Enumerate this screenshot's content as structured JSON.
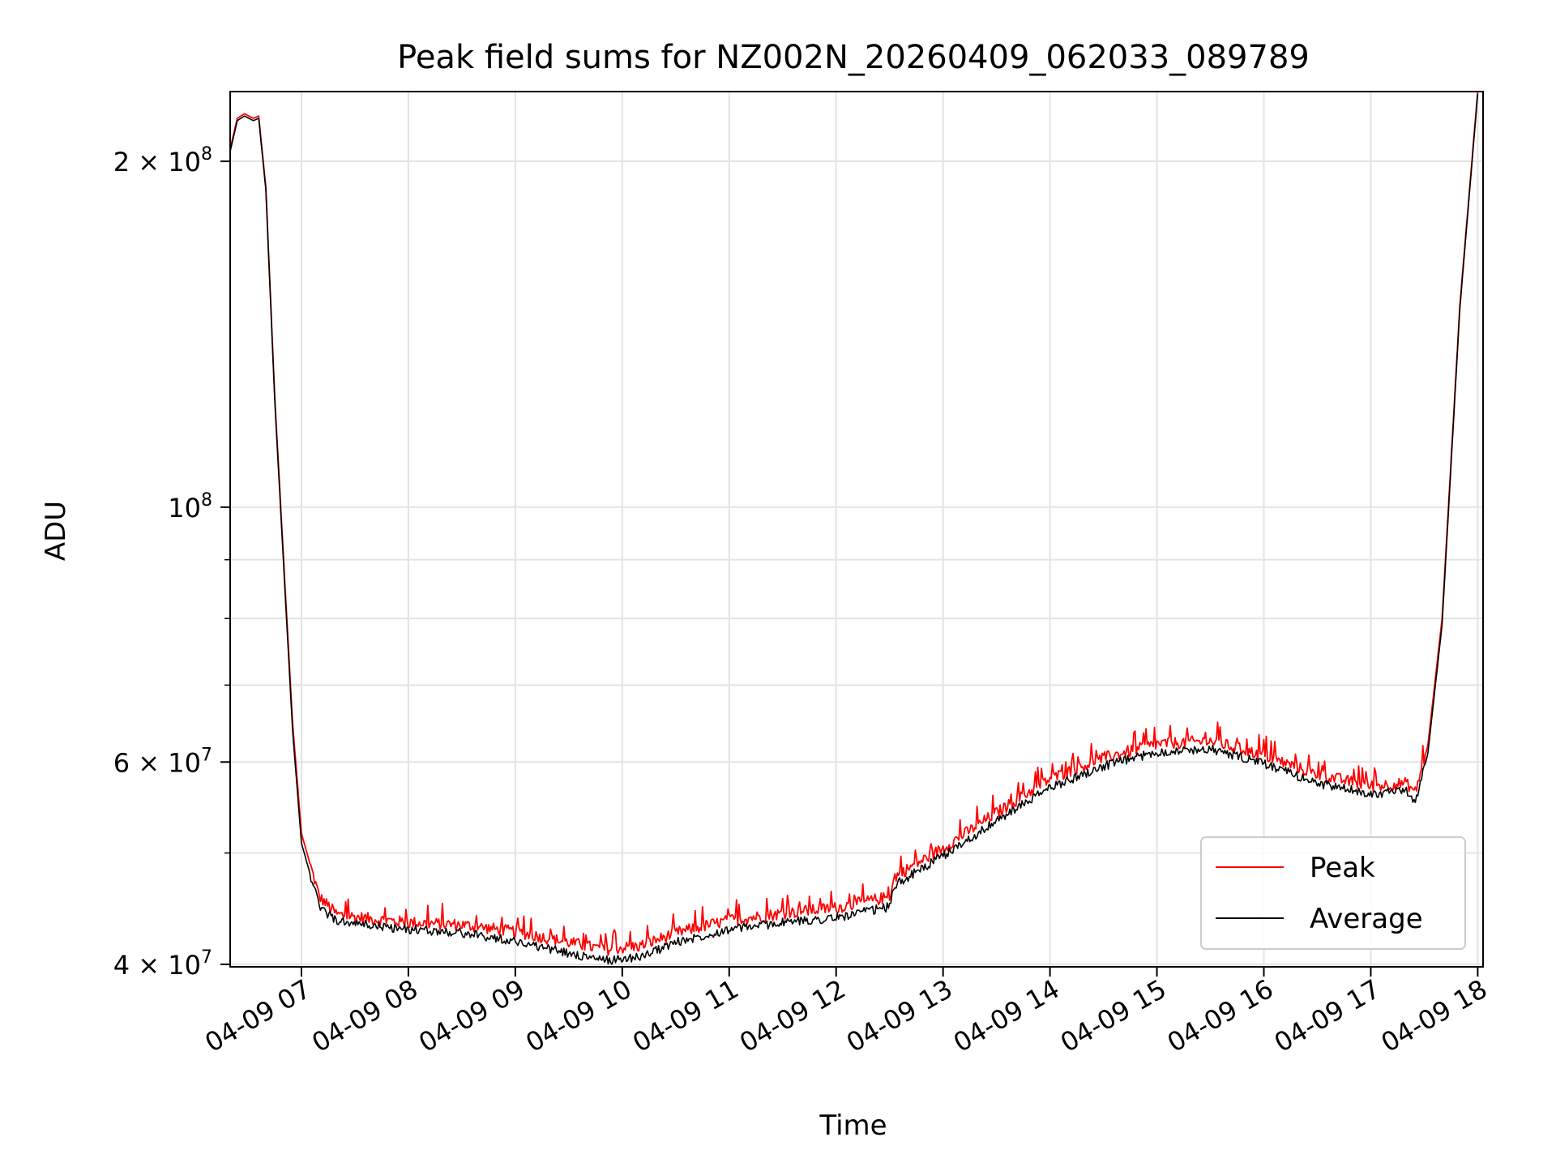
{
  "chart_data": {
    "type": "line",
    "title": "Peak field sums for NZ002N_20260409_062033_089789",
    "xlabel": "Time",
    "ylabel": "ADU",
    "yscale": "log",
    "grid": true,
    "legend_position": "lower-right",
    "xlim": [
      "2026-04-09 06:20",
      "2026-04-09 18:03"
    ],
    "ylim": [
      39800000,
      230000000
    ],
    "x_ticks": [
      "04-09 07",
      "04-09 08",
      "04-09 09",
      "04-09 10",
      "04-09 11",
      "04-09 12",
      "04-09 13",
      "04-09 14",
      "04-09 15",
      "04-09 16",
      "04-09 17",
      "04-09 18"
    ],
    "y_ticks": [
      {
        "value": 40000000,
        "base": "4 × 10",
        "exp": "7"
      },
      {
        "value": 60000000,
        "base": "6 × 10",
        "exp": "7"
      },
      {
        "value": 100000000,
        "base": "10",
        "exp": "8"
      },
      {
        "value": 200000000,
        "base": "2 × 10",
        "exp": "8"
      }
    ],
    "series": [
      {
        "name": "Peak",
        "color": "#ff0000",
        "points": [
          [
            "2026-04-09 06:20",
            205000000
          ],
          [
            "2026-04-09 06:24",
            218000000
          ],
          [
            "2026-04-09 06:28",
            220000000
          ],
          [
            "2026-04-09 06:33",
            218000000
          ],
          [
            "2026-04-09 06:36",
            219000000
          ],
          [
            "2026-04-09 06:40",
            190000000
          ],
          [
            "2026-04-09 06:45",
            125000000
          ],
          [
            "2026-04-09 06:50",
            90000000
          ],
          [
            "2026-04-09 06:55",
            65000000
          ],
          [
            "2026-04-09 07:00",
            52000000
          ],
          [
            "2026-04-09 07:10",
            45800000
          ],
          [
            "2026-04-09 07:20",
            44200000
          ],
          [
            "2026-04-09 07:40",
            43800000
          ],
          [
            "2026-04-09 08:00",
            43500000
          ],
          [
            "2026-04-09 08:30",
            43300000
          ],
          [
            "2026-04-09 09:00",
            42700000
          ],
          [
            "2026-04-09 09:30",
            41800000
          ],
          [
            "2026-04-09 09:50",
            41200000
          ],
          [
            "2026-04-09 10:10",
            41500000
          ],
          [
            "2026-04-09 10:30",
            42600000
          ],
          [
            "2026-04-09 11:00",
            43700000
          ],
          [
            "2026-04-09 11:30",
            44300000
          ],
          [
            "2026-04-09 12:00",
            44800000
          ],
          [
            "2026-04-09 12:30",
            45800000
          ],
          [
            "2026-04-09 12:33",
            47700000
          ],
          [
            "2026-04-09 13:00",
            50500000
          ],
          [
            "2026-04-09 13:30",
            54200000
          ],
          [
            "2026-04-09 14:00",
            58000000
          ],
          [
            "2026-04-09 14:30",
            60500000
          ],
          [
            "2026-04-09 15:00",
            62200000
          ],
          [
            "2026-04-09 15:30",
            62600000
          ],
          [
            "2026-04-09 16:00",
            60800000
          ],
          [
            "2026-04-09 16:30",
            58500000
          ],
          [
            "2026-04-09 17:00",
            57200000
          ],
          [
            "2026-04-09 17:20",
            57500000
          ],
          [
            "2026-04-09 17:25",
            56500000
          ],
          [
            "2026-04-09 17:32",
            62000000
          ],
          [
            "2026-04-09 17:40",
            80000000
          ],
          [
            "2026-04-09 17:50",
            150000000
          ],
          [
            "2026-04-09 18:00",
            230000000
          ]
        ]
      },
      {
        "name": "Average",
        "color": "#000000",
        "points": [
          [
            "2026-04-09 06:20",
            204000000
          ],
          [
            "2026-04-09 06:24",
            217000000
          ],
          [
            "2026-04-09 06:28",
            219000000
          ],
          [
            "2026-04-09 06:33",
            217000000
          ],
          [
            "2026-04-09 06:36",
            218000000
          ],
          [
            "2026-04-09 06:40",
            189000000
          ],
          [
            "2026-04-09 06:45",
            124000000
          ],
          [
            "2026-04-09 06:50",
            89000000
          ],
          [
            "2026-04-09 06:55",
            64000000
          ],
          [
            "2026-04-09 07:00",
            51000000
          ],
          [
            "2026-04-09 07:10",
            44900000
          ],
          [
            "2026-04-09 07:20",
            43600000
          ],
          [
            "2026-04-09 07:40",
            43200000
          ],
          [
            "2026-04-09 08:00",
            42900000
          ],
          [
            "2026-04-09 08:30",
            42600000
          ],
          [
            "2026-04-09 09:00",
            41900000
          ],
          [
            "2026-04-09 09:30",
            40900000
          ],
          [
            "2026-04-09 09:50",
            40300000
          ],
          [
            "2026-04-09 10:10",
            40600000
          ],
          [
            "2026-04-09 10:30",
            41800000
          ],
          [
            "2026-04-09 11:00",
            42900000
          ],
          [
            "2026-04-09 11:30",
            43500000
          ],
          [
            "2026-04-09 12:00",
            43900000
          ],
          [
            "2026-04-09 12:30",
            44900000
          ],
          [
            "2026-04-09 12:33",
            46900000
          ],
          [
            "2026-04-09 13:00",
            49700000
          ],
          [
            "2026-04-09 13:30",
            53300000
          ],
          [
            "2026-04-09 14:00",
            57000000
          ],
          [
            "2026-04-09 14:30",
            59500000
          ],
          [
            "2026-04-09 15:00",
            61200000
          ],
          [
            "2026-04-09 15:30",
            61600000
          ],
          [
            "2026-04-09 16:00",
            59800000
          ],
          [
            "2026-04-09 16:30",
            57500000
          ],
          [
            "2026-04-09 17:00",
            56300000
          ],
          [
            "2026-04-09 17:20",
            56600000
          ],
          [
            "2026-04-09 17:25",
            55200000
          ],
          [
            "2026-04-09 17:32",
            61000000
          ],
          [
            "2026-04-09 17:40",
            79000000
          ],
          [
            "2026-04-09 17:50",
            149000000
          ],
          [
            "2026-04-09 18:00",
            229000000
          ]
        ]
      }
    ]
  }
}
